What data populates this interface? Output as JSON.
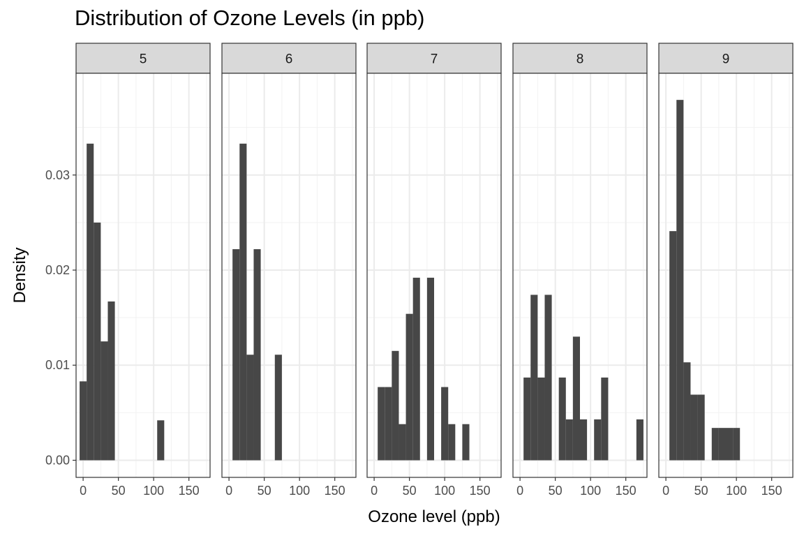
{
  "chart_data": {
    "type": "bar",
    "title": "Distribution of Ozone Levels (in ppb)",
    "xlabel": "Ozone level (ppb)",
    "ylabel": "Density",
    "xlim": [
      -10,
      180
    ],
    "ylim": [
      -0.0018,
      0.0407
    ],
    "x_ticks": [
      0,
      50,
      100,
      150
    ],
    "y_ticks": [
      0,
      0.01,
      0.02,
      0.03
    ],
    "y_tick_labels": [
      "0.00",
      "0.01",
      "0.02",
      "0.03"
    ],
    "grid": true,
    "bar_color": "#474747",
    "bin_width": 10,
    "panels": [
      {
        "label": "5",
        "bars": [
          {
            "x0": -5,
            "x1": 5,
            "density": 0.0083
          },
          {
            "x0": 5,
            "x1": 15,
            "density": 0.0333
          },
          {
            "x0": 15,
            "x1": 25,
            "density": 0.025
          },
          {
            "x0": 25,
            "x1": 35,
            "density": 0.0125
          },
          {
            "x0": 35,
            "x1": 45,
            "density": 0.0167
          },
          {
            "x0": 105,
            "x1": 115,
            "density": 0.0042
          }
        ]
      },
      {
        "label": "6",
        "bars": [
          {
            "x0": 5,
            "x1": 15,
            "density": 0.0222
          },
          {
            "x0": 15,
            "x1": 25,
            "density": 0.0333
          },
          {
            "x0": 25,
            "x1": 35,
            "density": 0.0111
          },
          {
            "x0": 35,
            "x1": 45,
            "density": 0.0222
          },
          {
            "x0": 65,
            "x1": 75,
            "density": 0.0111
          }
        ]
      },
      {
        "label": "7",
        "bars": [
          {
            "x0": 5,
            "x1": 15,
            "density": 0.0077
          },
          {
            "x0": 15,
            "x1": 25,
            "density": 0.0077
          },
          {
            "x0": 25,
            "x1": 35,
            "density": 0.0115
          },
          {
            "x0": 35,
            "x1": 45,
            "density": 0.0038
          },
          {
            "x0": 45,
            "x1": 55,
            "density": 0.0154
          },
          {
            "x0": 55,
            "x1": 65,
            "density": 0.0192
          },
          {
            "x0": 75,
            "x1": 85,
            "density": 0.0192
          },
          {
            "x0": 95,
            "x1": 105,
            "density": 0.0077
          },
          {
            "x0": 105,
            "x1": 115,
            "density": 0.0038
          },
          {
            "x0": 125,
            "x1": 135,
            "density": 0.0038
          }
        ]
      },
      {
        "label": "8",
        "bars": [
          {
            "x0": 5,
            "x1": 15,
            "density": 0.0087
          },
          {
            "x0": 15,
            "x1": 25,
            "density": 0.0174
          },
          {
            "x0": 25,
            "x1": 35,
            "density": 0.0087
          },
          {
            "x0": 35,
            "x1": 45,
            "density": 0.0174
          },
          {
            "x0": 55,
            "x1": 65,
            "density": 0.0087
          },
          {
            "x0": 65,
            "x1": 75,
            "density": 0.0043
          },
          {
            "x0": 75,
            "x1": 85,
            "density": 0.013
          },
          {
            "x0": 85,
            "x1": 95,
            "density": 0.0043
          },
          {
            "x0": 105,
            "x1": 115,
            "density": 0.0043
          },
          {
            "x0": 115,
            "x1": 125,
            "density": 0.0087
          },
          {
            "x0": 165,
            "x1": 175,
            "density": 0.0043
          }
        ]
      },
      {
        "label": "9",
        "bars": [
          {
            "x0": 5,
            "x1": 15,
            "density": 0.0241
          },
          {
            "x0": 15,
            "x1": 25,
            "density": 0.0379
          },
          {
            "x0": 25,
            "x1": 35,
            "density": 0.0103
          },
          {
            "x0": 35,
            "x1": 45,
            "density": 0.0069
          },
          {
            "x0": 45,
            "x1": 55,
            "density": 0.0069
          },
          {
            "x0": 65,
            "x1": 75,
            "density": 0.0034
          },
          {
            "x0": 75,
            "x1": 85,
            "density": 0.0034
          },
          {
            "x0": 85,
            "x1": 95,
            "density": 0.0034
          },
          {
            "x0": 95,
            "x1": 105,
            "density": 0.0034
          }
        ]
      }
    ]
  }
}
